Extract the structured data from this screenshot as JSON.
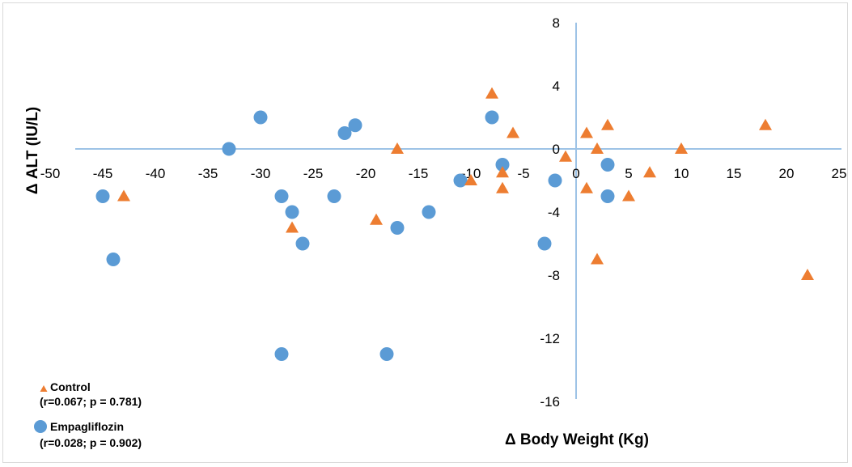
{
  "chart_data": {
    "type": "scatter",
    "xlabel": "Δ Body Weight (Kg)",
    "ylabel": "Δ ALT (IU/L)",
    "xlim": [
      -50,
      25
    ],
    "ylim": [
      -16,
      8
    ],
    "x_ticks": [
      -50,
      -45,
      -40,
      -35,
      -30,
      -25,
      -20,
      -15,
      -10,
      -5,
      0,
      5,
      10,
      15,
      20,
      25
    ],
    "y_ticks": [
      8,
      4,
      0,
      -4,
      -8,
      -12,
      -16
    ],
    "colors": {
      "control": "#ed7d31",
      "empagliflozin": "#5b9bd5",
      "axis": "#9dc3e6"
    },
    "legend_position": "bottom-left",
    "series": [
      {
        "name": "Control",
        "stats": "(r=0.067; p = 0.781)",
        "marker": "triangle",
        "points": [
          [
            -43,
            -3
          ],
          [
            -27,
            -5
          ],
          [
            -19,
            -4.5
          ],
          [
            -17,
            0
          ],
          [
            -10,
            -2
          ],
          [
            -8,
            3.5
          ],
          [
            -7,
            -1.5
          ],
          [
            -7,
            -2.5
          ],
          [
            -6,
            1
          ],
          [
            -1,
            -0.5
          ],
          [
            1,
            1
          ],
          [
            1,
            -2.5
          ],
          [
            2,
            0
          ],
          [
            2,
            -7
          ],
          [
            3,
            1.5
          ],
          [
            5,
            -3
          ],
          [
            7,
            -1.5
          ],
          [
            10,
            0
          ],
          [
            18,
            1.5
          ],
          [
            22,
            -8
          ]
        ]
      },
      {
        "name": "Empagliflozin",
        "stats": "(r=0.028; p = 0.902)",
        "marker": "circle",
        "points": [
          [
            -45,
            -3
          ],
          [
            -44,
            -7
          ],
          [
            -33,
            0
          ],
          [
            -30,
            2
          ],
          [
            -28,
            -3
          ],
          [
            -28,
            -13
          ],
          [
            -27,
            -4
          ],
          [
            -26,
            -6
          ],
          [
            -23,
            -3
          ],
          [
            -22,
            1
          ],
          [
            -21,
            1.5
          ],
          [
            -18,
            -13
          ],
          [
            -17,
            -5
          ],
          [
            -14,
            -4
          ],
          [
            -11,
            -2
          ],
          [
            -8,
            2
          ],
          [
            -7,
            -1
          ],
          [
            -3,
            -6
          ],
          [
            -2,
            -2
          ],
          [
            3,
            -1
          ],
          [
            3,
            -3
          ]
        ]
      }
    ]
  }
}
